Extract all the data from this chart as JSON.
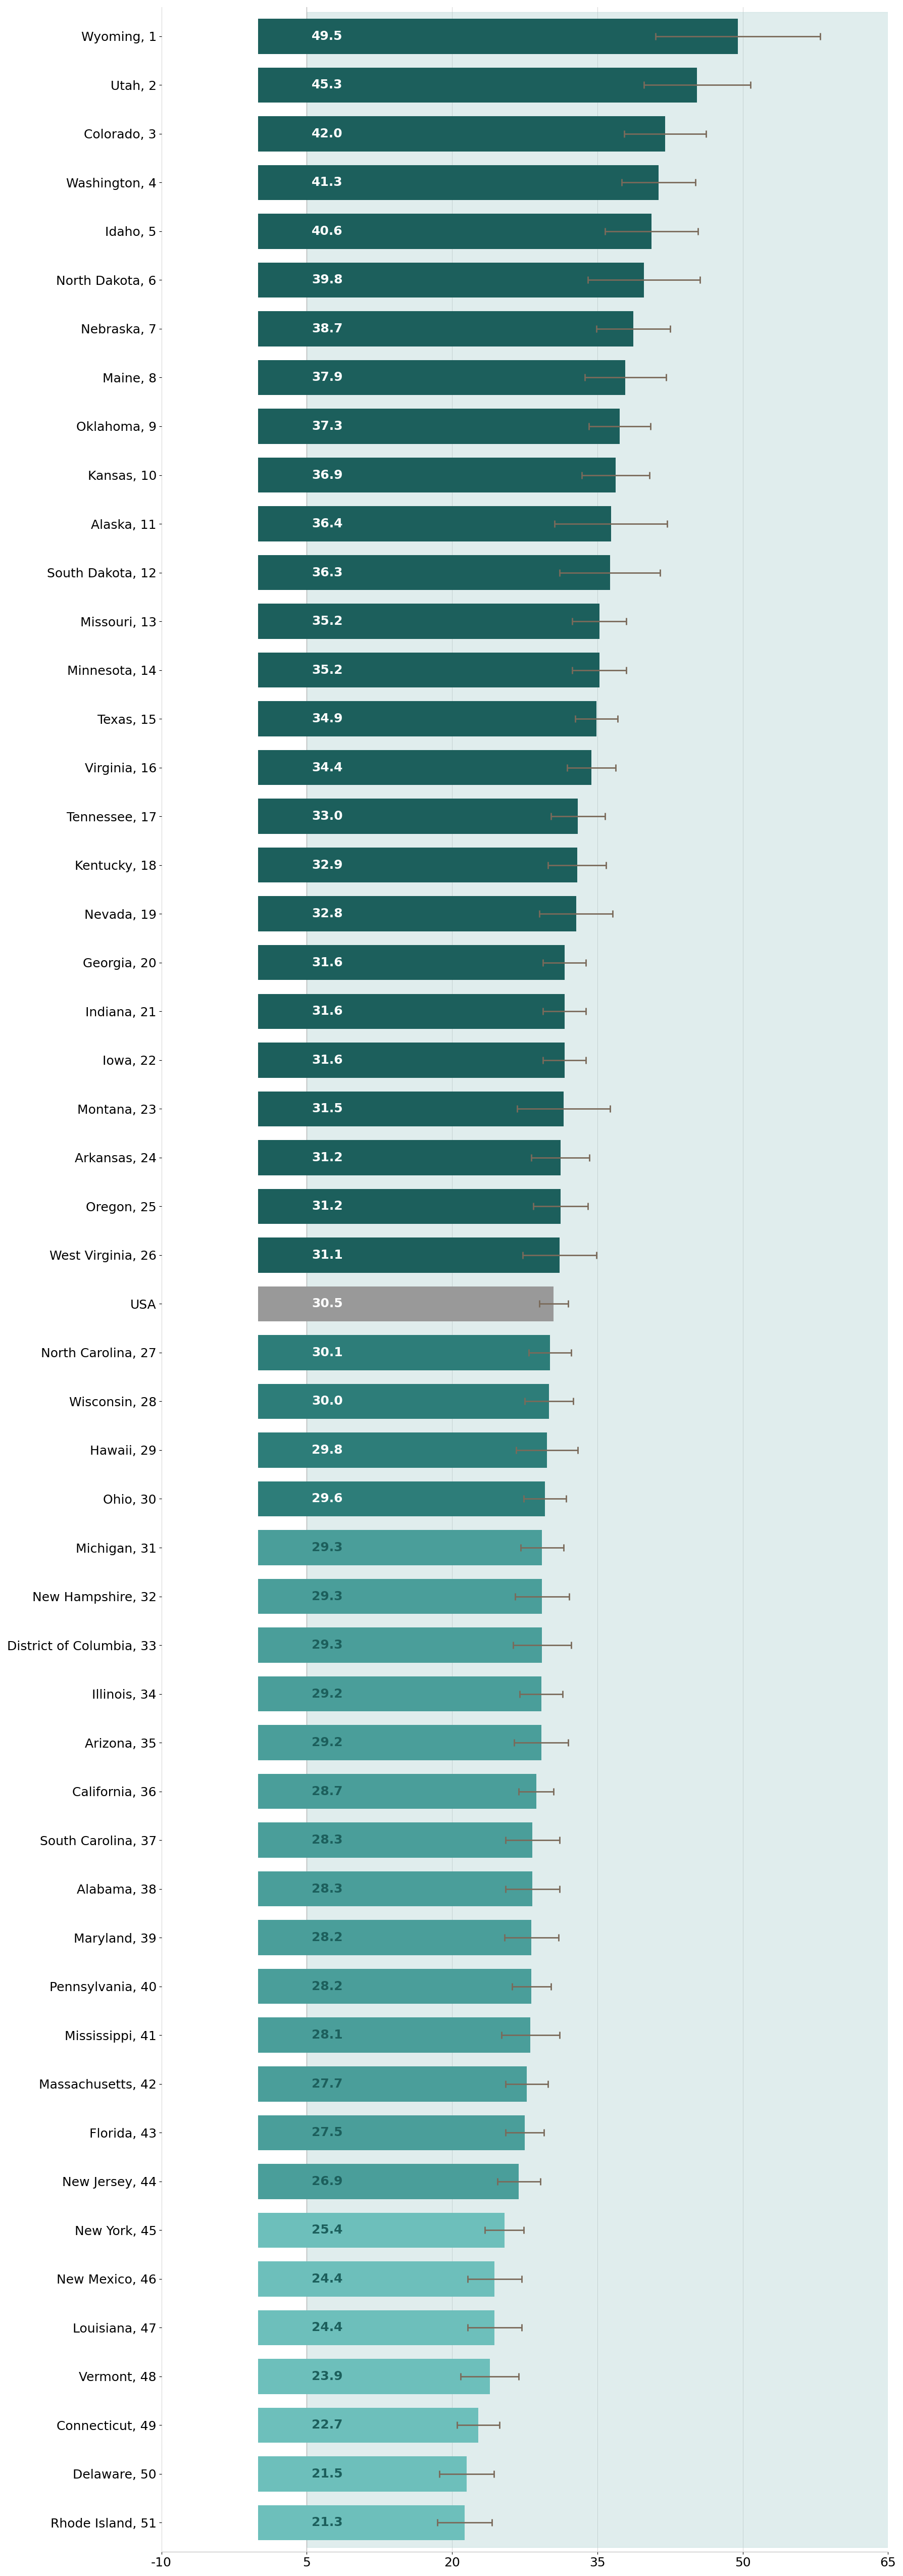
{
  "states": [
    "Wyoming, 1",
    "Utah, 2",
    "Colorado, 3",
    "Washington, 4",
    "Idaho, 5",
    "North Dakota, 6",
    "Nebraska, 7",
    "Maine, 8",
    "Oklahoma, 9",
    "Kansas, 10",
    "Alaska, 11",
    "South Dakota, 12",
    "Missouri, 13",
    "Minnesota, 14",
    "Texas, 15",
    "Virginia, 16",
    "Tennessee, 17",
    "Kentucky, 18",
    "Nevada, 19",
    "Georgia, 20",
    "Indiana, 21",
    "Iowa, 22",
    "Montana, 23",
    "Arkansas, 24",
    "Oregon, 25",
    "West Virginia, 26",
    "USA",
    "North Carolina, 27",
    "Wisconsin, 28",
    "Hawaii, 29",
    "Ohio, 30",
    "Michigan, 31",
    "New Hampshire, 32",
    "District of Columbia, 33",
    "Illinois, 34",
    "Arizona, 35",
    "California, 36",
    "South Carolina, 37",
    "Alabama, 38",
    "Maryland, 39",
    "Pennsylvania, 40",
    "Mississippi, 41",
    "Massachusetts, 42",
    "Florida, 43",
    "New Jersey, 44",
    "New York, 45",
    "New Mexico, 46",
    "Louisiana, 47",
    "Vermont, 48",
    "Connecticut, 49",
    "Delaware, 50",
    "Rhode Island, 51"
  ],
  "values": [
    49.5,
    45.3,
    42.0,
    41.3,
    40.6,
    39.8,
    38.7,
    37.9,
    37.3,
    36.9,
    36.4,
    36.3,
    35.2,
    35.2,
    34.9,
    34.4,
    33.0,
    32.9,
    32.8,
    31.6,
    31.6,
    31.6,
    31.5,
    31.2,
    31.2,
    31.1,
    30.5,
    30.1,
    30.0,
    29.8,
    29.6,
    29.3,
    29.3,
    29.3,
    29.2,
    29.2,
    28.7,
    28.3,
    28.3,
    28.2,
    28.2,
    28.1,
    27.7,
    27.5,
    26.9,
    25.4,
    24.4,
    24.4,
    23.9,
    22.7,
    21.5,
    21.3
  ],
  "errors": [
    8.5,
    5.5,
    4.2,
    3.8,
    4.8,
    5.8,
    3.8,
    4.2,
    3.2,
    3.5,
    5.8,
    5.2,
    2.8,
    2.8,
    2.2,
    2.5,
    2.8,
    3.0,
    3.8,
    2.2,
    2.2,
    2.2,
    4.8,
    3.0,
    2.8,
    3.8,
    1.5,
    2.2,
    2.5,
    3.2,
    2.2,
    2.2,
    2.8,
    3.0,
    2.2,
    2.8,
    1.8,
    2.8,
    2.8,
    2.8,
    2.0,
    3.0,
    2.2,
    2.0,
    2.2,
    2.0,
    2.8,
    2.8,
    3.0,
    2.2,
    2.8,
    2.8
  ],
  "usa_value": 30.5,
  "color_dark_teal": "#1c5f5c",
  "color_mid_teal": "#2d7d79",
  "color_light_teal_bg": "#a8cece",
  "color_light_teal_bar": "#4a9e9a",
  "color_lightest_teal_bar": "#6dbfbb",
  "color_usa": "#999999",
  "bar_text_color_white": "#ffffff",
  "bar_text_color_dark": "#1c5f5c",
  "bg_color": "#ffffff",
  "xlim": [
    -10,
    65
  ],
  "xticks": [
    -10,
    5,
    20,
    35,
    50,
    65
  ],
  "label_fontsize": 18,
  "tick_fontsize": 18,
  "bar_height": 0.72
}
